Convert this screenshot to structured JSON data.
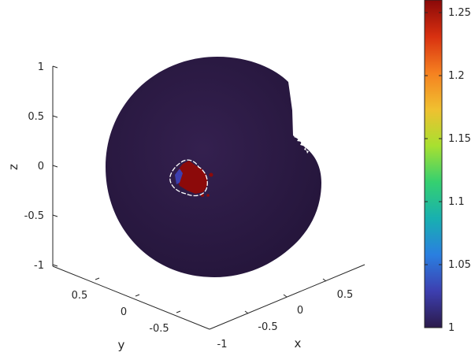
{
  "chart_data": {
    "type": "surface-3d",
    "title": "",
    "axes": {
      "x": {
        "label": "x",
        "ticks": [
          "-1",
          "-0.5",
          "0",
          "0.5"
        ]
      },
      "y": {
        "label": "y",
        "ticks": [
          "0.5",
          "0",
          "-0.5"
        ]
      },
      "z": {
        "label": "z",
        "ticks": [
          "1",
          "0.5",
          "0",
          "-0.5",
          "-1"
        ]
      }
    },
    "colorbar": {
      "ticks": [
        "1.25",
        "1.2",
        "1.15",
        "1.1",
        "1.05",
        "1"
      ],
      "min": 1,
      "max": 1.26,
      "colormap": [
        "#2b1a4a",
        "#3d3fb0",
        "#2a7fe0",
        "#18b0b0",
        "#35d070",
        "#a8e030",
        "#f0c030",
        "#f58020",
        "#d83010",
        "#8a0808"
      ]
    },
    "surface": {
      "base_value": 1,
      "base_color": "#2c1a45",
      "hotspot_value": 1.25,
      "hotspot_color": "#8c0a0a"
    }
  }
}
